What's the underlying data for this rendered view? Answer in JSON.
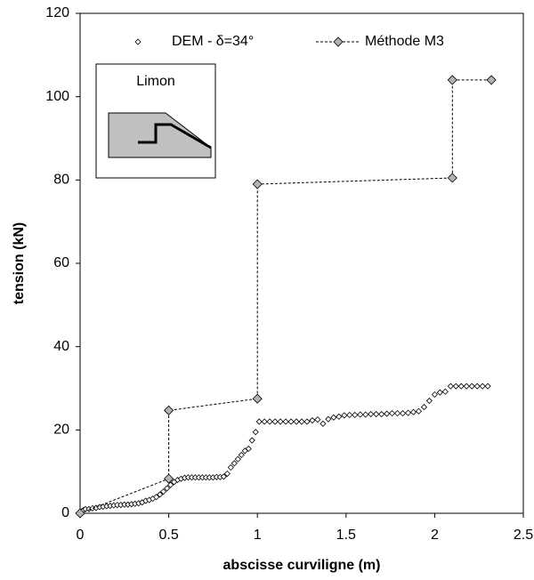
{
  "chart_data": {
    "type": "scatter",
    "x_label": "abscisse curviligne (m)",
    "y_label": "tension (kN)",
    "annotation": "Limon",
    "xlim": [
      0,
      2.5
    ],
    "xticks": [
      0,
      0.5,
      1,
      1.5,
      2,
      2.5
    ],
    "ylim": [
      0,
      120
    ],
    "yticks": [
      0,
      20,
      40,
      60,
      80,
      100,
      120
    ],
    "grid": false,
    "legend": "top",
    "series": [
      {
        "name": "DEM - δ=34°",
        "color": "#ffffff",
        "line": false,
        "x": [
          0,
          0.01,
          0.02,
          0.03,
          0.05,
          0.07,
          0.09,
          0.11,
          0.13,
          0.15,
          0.17,
          0.19,
          0.21,
          0.23,
          0.25,
          0.27,
          0.29,
          0.31,
          0.33,
          0.35,
          0.37,
          0.39,
          0.41,
          0.43,
          0.45,
          0.47,
          0.49,
          0.51,
          0.53,
          0.55,
          0.57,
          0.59,
          0.61,
          0.63,
          0.65,
          0.67,
          0.69,
          0.71,
          0.73,
          0.75,
          0.77,
          0.79,
          0.81,
          0.83,
          0.85,
          0.87,
          0.89,
          0.91,
          0.93,
          0.95,
          0.97,
          0.99,
          1.01,
          1.04,
          1.07,
          1.1,
          1.13,
          1.16,
          1.19,
          1.22,
          1.25,
          1.28,
          1.31,
          1.34,
          1.37,
          1.4,
          1.43,
          1.46,
          1.49,
          1.52,
          1.55,
          1.58,
          1.61,
          1.64,
          1.67,
          1.7,
          1.73,
          1.76,
          1.79,
          1.82,
          1.85,
          1.88,
          1.91,
          1.94,
          1.97,
          2.0,
          2.03,
          2.06,
          2.09,
          2.12,
          2.15,
          2.18,
          2.21,
          2.24,
          2.27,
          2.3
        ],
        "values": [
          0,
          0.5,
          0.8,
          1.0,
          1.0,
          1.2,
          1.3,
          1.5,
          1.6,
          1.7,
          1.8,
          1.9,
          2.0,
          2.0,
          2.1,
          2.1,
          2.2,
          2.3,
          2.4,
          2.6,
          3.0,
          3.2,
          3.5,
          3.9,
          4.5,
          5.2,
          6.0,
          6.8,
          7.5,
          8.0,
          8.3,
          8.5,
          8.6,
          8.6,
          8.6,
          8.6,
          8.6,
          8.6,
          8.6,
          8.6,
          8.7,
          8.7,
          8.8,
          9.5,
          11.0,
          12.0,
          13.0,
          14.0,
          15.0,
          15.5,
          17.5,
          19.5,
          22,
          22,
          22,
          22,
          22,
          22,
          22,
          22,
          22,
          22,
          22.3,
          22.5,
          21.5,
          22.6,
          23,
          23.2,
          23.5,
          23.6,
          23.6,
          23.7,
          23.7,
          23.8,
          23.8,
          23.8,
          23.9,
          24,
          24,
          24,
          24.1,
          24.3,
          24.5,
          25.5,
          27,
          28.5,
          29,
          29.2,
          30.5,
          30.5,
          30.5,
          30.5,
          30.5,
          30.5,
          30.5,
          30.5
        ]
      },
      {
        "name": "Méthode M3",
        "color": "#b3b3b3",
        "line": true,
        "x": [
          0,
          0.5,
          0.5,
          1,
          1,
          2.1,
          2.1,
          2.32
        ],
        "values": [
          0,
          8.3,
          24.7,
          27.5,
          79,
          80.5,
          104,
          104
        ]
      }
    ]
  }
}
